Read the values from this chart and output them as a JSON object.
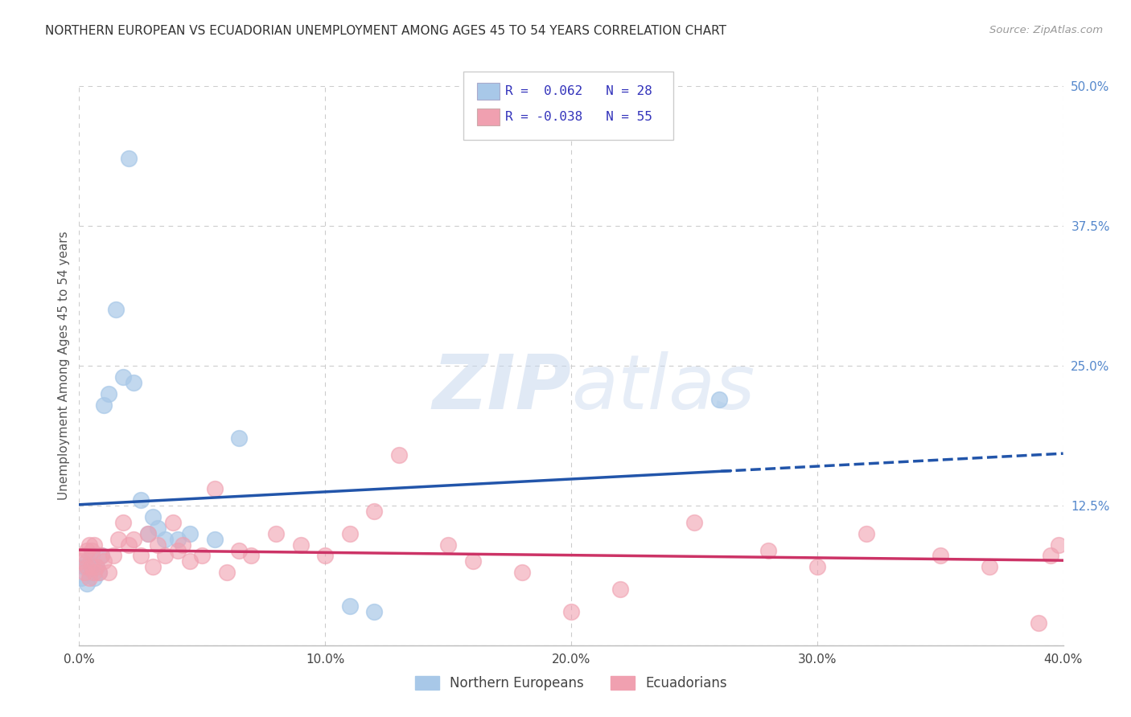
{
  "title": "NORTHERN EUROPEAN VS ECUADORIAN UNEMPLOYMENT AMONG AGES 45 TO 54 YEARS CORRELATION CHART",
  "source": "Source: ZipAtlas.com",
  "ylabel": "Unemployment Among Ages 45 to 54 years",
  "xlim": [
    0.0,
    0.4
  ],
  "ylim": [
    0.0,
    0.5
  ],
  "xticks": [
    0.0,
    0.1,
    0.2,
    0.3,
    0.4
  ],
  "yticks_right": [
    0.0,
    0.125,
    0.25,
    0.375,
    0.5
  ],
  "ytick_labels_right": [
    "",
    "12.5%",
    "25.0%",
    "37.5%",
    "50.0%"
  ],
  "xtick_labels": [
    "0.0%",
    "10.0%",
    "20.0%",
    "30.0%",
    "40.0%"
  ],
  "blue_color": "#a8c8e8",
  "pink_color": "#f0a0b0",
  "blue_line_color": "#2255aa",
  "pink_line_color": "#cc3366",
  "legend_text_color": "#3333bb",
  "title_color": "#333333",
  "grid_color": "#cccccc",
  "background_color": "#ffffff",
  "northern_europeans_x": [
    0.001,
    0.002,
    0.003,
    0.003,
    0.004,
    0.005,
    0.006,
    0.007,
    0.008,
    0.009,
    0.01,
    0.012,
    0.015,
    0.018,
    0.02,
    0.022,
    0.025,
    0.028,
    0.03,
    0.032,
    0.035,
    0.04,
    0.045,
    0.055,
    0.065,
    0.11,
    0.12,
    0.26
  ],
  "northern_europeans_y": [
    0.06,
    0.07,
    0.055,
    0.075,
    0.065,
    0.08,
    0.06,
    0.07,
    0.065,
    0.08,
    0.215,
    0.225,
    0.3,
    0.24,
    0.435,
    0.235,
    0.13,
    0.1,
    0.115,
    0.105,
    0.095,
    0.095,
    0.1,
    0.095,
    0.185,
    0.035,
    0.03,
    0.22
  ],
  "ecuadorians_x": [
    0.001,
    0.002,
    0.002,
    0.003,
    0.003,
    0.004,
    0.004,
    0.005,
    0.005,
    0.006,
    0.006,
    0.007,
    0.008,
    0.009,
    0.01,
    0.012,
    0.014,
    0.016,
    0.018,
    0.02,
    0.022,
    0.025,
    0.028,
    0.03,
    0.032,
    0.035,
    0.038,
    0.04,
    0.042,
    0.045,
    0.05,
    0.055,
    0.06,
    0.065,
    0.07,
    0.08,
    0.09,
    0.1,
    0.11,
    0.12,
    0.13,
    0.15,
    0.16,
    0.18,
    0.2,
    0.22,
    0.25,
    0.28,
    0.3,
    0.32,
    0.35,
    0.37,
    0.39,
    0.395,
    0.398
  ],
  "ecuadorians_y": [
    0.075,
    0.065,
    0.08,
    0.07,
    0.085,
    0.06,
    0.09,
    0.07,
    0.085,
    0.065,
    0.09,
    0.07,
    0.065,
    0.08,
    0.075,
    0.065,
    0.08,
    0.095,
    0.11,
    0.09,
    0.095,
    0.08,
    0.1,
    0.07,
    0.09,
    0.08,
    0.11,
    0.085,
    0.09,
    0.075,
    0.08,
    0.14,
    0.065,
    0.085,
    0.08,
    0.1,
    0.09,
    0.08,
    0.1,
    0.12,
    0.17,
    0.09,
    0.075,
    0.065,
    0.03,
    0.05,
    0.11,
    0.085,
    0.07,
    0.1,
    0.08,
    0.07,
    0.02,
    0.08,
    0.09
  ]
}
